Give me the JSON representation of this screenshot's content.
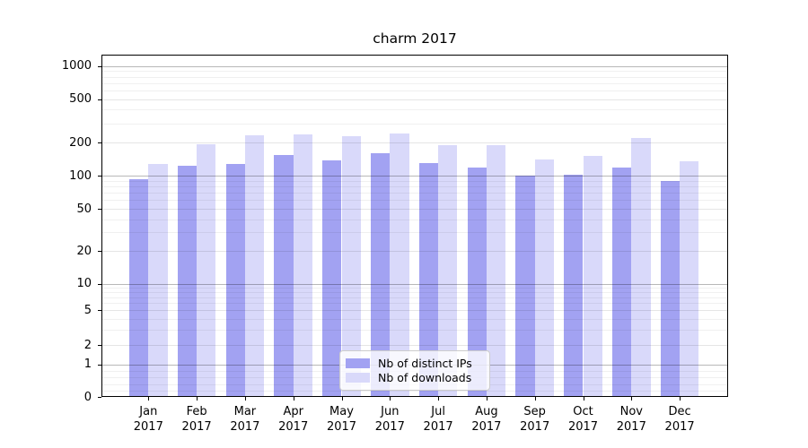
{
  "chart_data": {
    "type": "bar",
    "title": "charm 2017",
    "categories": [
      "Jan",
      "Feb",
      "Mar",
      "Apr",
      "May",
      "Jun",
      "Jul",
      "Aug",
      "Sep",
      "Oct",
      "Nov",
      "Dec"
    ],
    "x_tick_year": "2017",
    "series": [
      {
        "name": "Nb of distinct IPs",
        "color": "#a2a2f2",
        "values": [
          93,
          124,
          128,
          155,
          139,
          160,
          131,
          120,
          100,
          103,
          120,
          90
        ]
      },
      {
        "name": "Nb of downloads",
        "color": "#d9d9fa",
        "values": [
          128,
          193,
          235,
          240,
          228,
          243,
          192,
          191,
          141,
          152,
          220,
          135
        ]
      }
    ],
    "yscale": "symlog",
    "ytick_labels": [
      0,
      1,
      2,
      5,
      10,
      20,
      50,
      100,
      200,
      500,
      1000
    ],
    "ylim": [
      0,
      1400
    ],
    "grid": true,
    "legend_position": "lower-center",
    "colors": {
      "background": "#ffffff",
      "axis": "#000000",
      "major_grid": "#b8b8b8",
      "minor_grid": "#ececec"
    }
  }
}
